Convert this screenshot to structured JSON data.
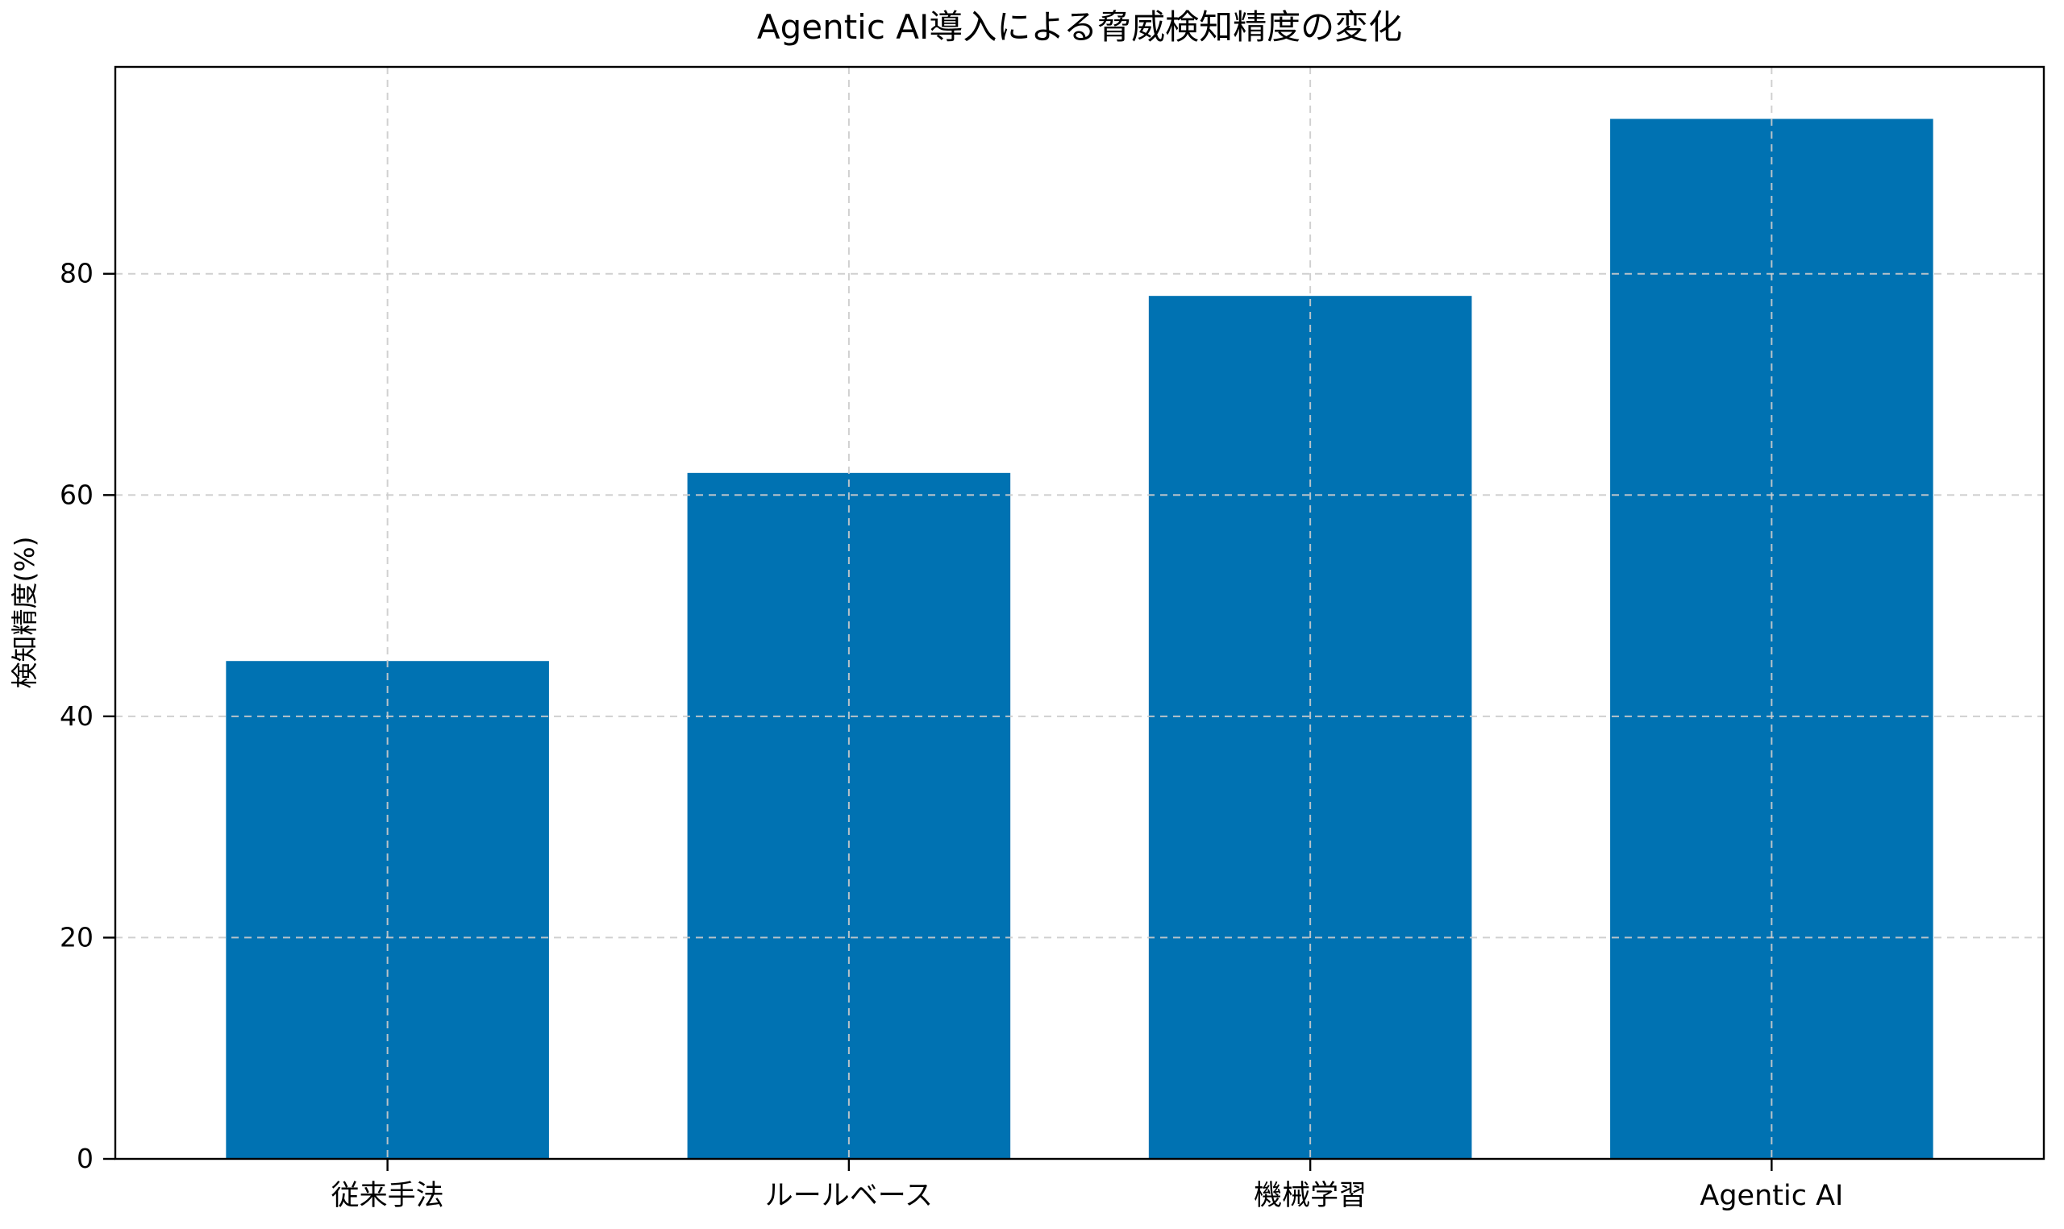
{
  "page": {
    "background": "#ffffff"
  },
  "chart_data": {
    "type": "bar",
    "title": "Agentic AI導入による脅威検知精度の変化",
    "categories": [
      "従来手法",
      "ルールベース",
      "機械学習",
      "Agentic AI"
    ],
    "values": [
      45,
      62,
      78,
      94
    ],
    "xlabel": "",
    "ylabel": "検知精度(%)",
    "ylim": [
      0,
      98.7
    ],
    "yticks": [
      0,
      20,
      40,
      60,
      80
    ],
    "legend": "none",
    "grid": "dashed, drawn over bars, horizontal at yticks and vertical at category centers",
    "bar_color": "#0072B2",
    "grid_color": "#cccccc",
    "axis_color": "#000000",
    "text_color": "#000000"
  }
}
